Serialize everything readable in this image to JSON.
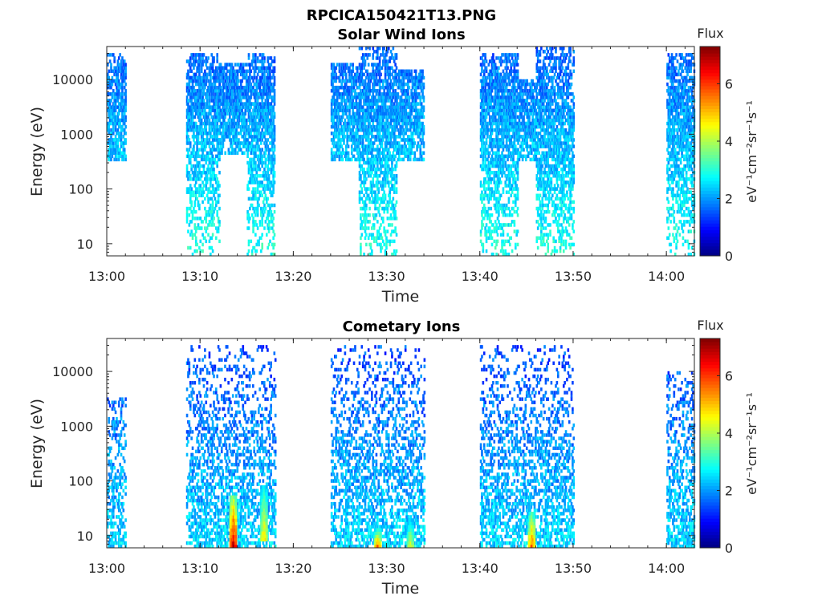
{
  "figure_title": "RPCICA150421T13.PNG",
  "colors": {
    "axis": "#262626",
    "colormap": [
      "#00008f",
      "#0000ff",
      "#00ffff",
      "#ffff00",
      "#ff0000",
      "#800000"
    ]
  },
  "chart_data": [
    {
      "type": "heatmap",
      "title": "Solar Wind Ions",
      "xlabel": "Time",
      "ylabel": "Energy (eV)",
      "y_scale": "log",
      "ylim": [
        6,
        40000
      ],
      "xlim": [
        "13:00",
        "14:03"
      ],
      "x_ticks": [
        "13:00",
        "13:10",
        "13:20",
        "13:30",
        "13:40",
        "13:50",
        "14:00"
      ],
      "y_ticks": [
        "10",
        "100",
        "1000",
        "10000"
      ],
      "colorbar": {
        "label": "Flux",
        "unit": "eV⁻¹cm⁻²sr⁻¹s⁻¹",
        "range": [
          0,
          7.3
        ],
        "ticks": [
          "0",
          "2",
          "4",
          "6"
        ]
      },
      "activity_intervals": [
        {
          "start": "13:00",
          "end": "13:02",
          "emin": 300,
          "emax": 30000,
          "peak_energy": 2500
        },
        {
          "start": "13:08.5",
          "end": "13:12",
          "emin": 6,
          "emax": 30000,
          "peak_energy": 3000
        },
        {
          "start": "13:12",
          "end": "13:15",
          "emin": 400,
          "emax": 20000,
          "peak_energy": 4000
        },
        {
          "start": "13:15",
          "end": "13:18",
          "emin": 6,
          "emax": 30000,
          "peak_energy": 2500
        },
        {
          "start": "13:24",
          "end": "13:27",
          "emin": 300,
          "emax": 20000,
          "peak_energy": 3000
        },
        {
          "start": "13:27",
          "end": "13:31",
          "emin": 6,
          "emax": 40000,
          "peak_energy": 2000
        },
        {
          "start": "13:31",
          "end": "13:34",
          "emin": 300,
          "emax": 15000,
          "peak_energy": 3000
        },
        {
          "start": "13:40",
          "end": "13:44",
          "emin": 6,
          "emax": 30000,
          "peak_energy": 2500
        },
        {
          "start": "13:44",
          "end": "13:46",
          "emin": 300,
          "emax": 10000,
          "peak_energy": 3000
        },
        {
          "start": "13:46",
          "end": "13:50",
          "emin": 6,
          "emax": 40000,
          "peak_energy": 1500
        },
        {
          "start": "14:00",
          "end": "14:03",
          "emin": 6,
          "emax": 30000,
          "peak_energy": 2500
        }
      ]
    },
    {
      "type": "heatmap",
      "title": "Cometary Ions",
      "xlabel": "Time",
      "ylabel": "Energy (eV)",
      "y_scale": "log",
      "ylim": [
        6,
        40000
      ],
      "xlim": [
        "13:00",
        "14:03"
      ],
      "x_ticks": [
        "13:00",
        "13:10",
        "13:20",
        "13:30",
        "13:40",
        "13:50",
        "14:00"
      ],
      "y_ticks": [
        "10",
        "100",
        "1000",
        "10000"
      ],
      "colorbar": {
        "label": "Flux",
        "unit": "eV⁻¹cm⁻²sr⁻¹s⁻¹",
        "range": [
          0,
          7.3
        ],
        "ticks": [
          "0",
          "2",
          "4",
          "6"
        ]
      },
      "activity_intervals": [
        {
          "start": "13:00",
          "end": "13:02",
          "emin": 6,
          "emax": 3000,
          "peak_energy": 8
        },
        {
          "start": "13:08.5",
          "end": "13:18",
          "emin": 6,
          "emax": 30000,
          "peak_energy": 8
        },
        {
          "start": "13:24",
          "end": "13:34",
          "emin": 6,
          "emax": 30000,
          "peak_energy": 8
        },
        {
          "start": "13:40",
          "end": "13:50",
          "emin": 6,
          "emax": 30000,
          "peak_energy": 8
        },
        {
          "start": "14:00",
          "end": "14:03",
          "emin": 6,
          "emax": 10000,
          "peak_energy": 8
        }
      ],
      "hotspots": [
        {
          "time": "13:13.5",
          "emin": 6,
          "emax": 50,
          "level": 7.2
        },
        {
          "time": "13:16.8",
          "emin": 8,
          "emax": 80,
          "level": 5.0
        },
        {
          "time": "13:29",
          "emin": 6,
          "emax": 12,
          "level": 5.8
        },
        {
          "time": "13:32.5",
          "emin": 6,
          "emax": 20,
          "level": 4.5
        },
        {
          "time": "13:45.5",
          "emin": 6,
          "emax": 25,
          "level": 6.0
        }
      ]
    }
  ]
}
